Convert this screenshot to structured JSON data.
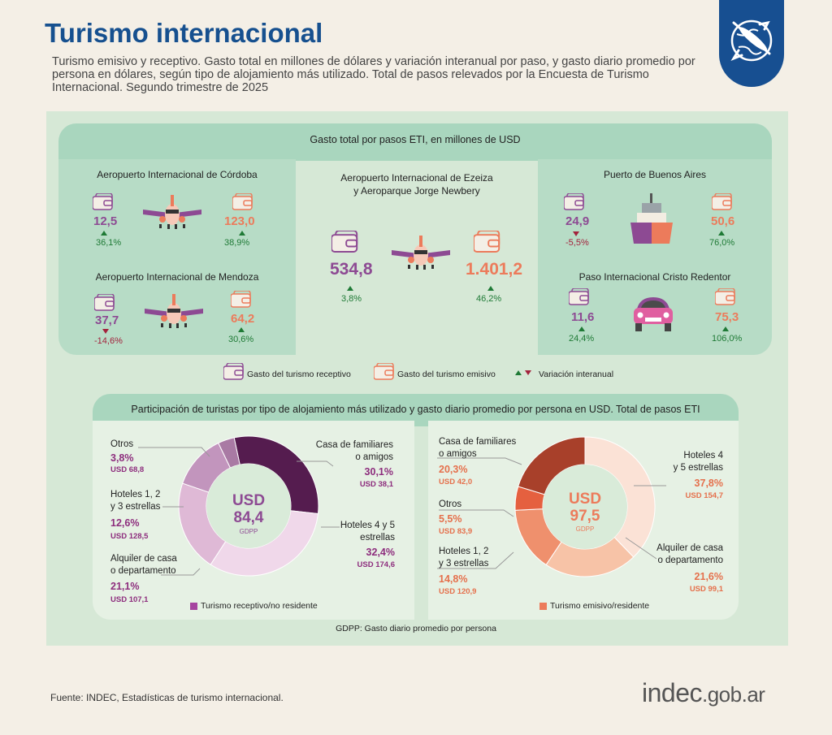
{
  "header": {
    "title": "Turismo internacional",
    "subtitle": "Turismo emisivo y receptivo. Gasto total en millones de dólares y variación interanual por paso, y gasto diario promedio por persona en dólares, según tipo de alojamiento más utilizado. Total de pasos relevados por la Encuesta de Turismo Internacional. Segundo trimestre de 2025"
  },
  "section1": {
    "title": "Gasto total por pasos ETI, en millones de USD",
    "cordoba": {
      "name": "Aeropuerto Internacional de Córdoba",
      "receptivo": "12,5",
      "var_receptivo": "36,1%",
      "emisivo": "123,0",
      "var_emisivo": "38,9%"
    },
    "mendoza": {
      "name": "Aeropuerto Internacional de Mendoza",
      "receptivo": "37,7",
      "var_receptivo": "-14,6%",
      "emisivo": "64,2",
      "var_emisivo": "30,6%"
    },
    "ezeiza": {
      "name1": "Aeropuerto Internacional de Ezeiza",
      "name2": "y Aeroparque Jorge Newbery",
      "receptivo": "534,8",
      "var_receptivo": "3,8%",
      "emisivo": "1.401,2",
      "var_emisivo": "46,2%"
    },
    "puerto": {
      "name": "Puerto de Buenos Aires",
      "receptivo": "24,9",
      "var_receptivo": "-5,5%",
      "emisivo": "50,6",
      "var_emisivo": "76,0%"
    },
    "cristo": {
      "name": "Paso Internacional Cristo Redentor",
      "receptivo": "11,6",
      "var_receptivo": "24,4%",
      "emisivo": "75,3",
      "var_emisivo": "106,0%"
    },
    "legend": {
      "receptivo": "Gasto del turismo receptivo",
      "emisivo": "Gasto del turismo emisivo",
      "variacion": "Variación interanual"
    }
  },
  "section2": {
    "title": "Participación de turistas por tipo de alojamiento más utilizado y gasto diario promedio por persona en USD. Total de pasos ETI",
    "receptivo": {
      "center_usd": "USD",
      "center_value": "84,4",
      "center_label": "GDPP",
      "legend": "Turismo receptivo/no residente",
      "otros": {
        "label": "Otros",
        "pct": "3,8%",
        "usd": "USD 68,8"
      },
      "casa": {
        "label1": "Casa de familiares",
        "label2": "o amigos",
        "pct": "30,1%",
        "usd": "USD 38,1"
      },
      "hoteles45": {
        "label1": "Hoteles 4 y 5",
        "label2": "estrellas",
        "pct": "32,4%",
        "usd": "USD 174,6"
      },
      "hoteles123": {
        "label1": "Hoteles 1, 2",
        "label2": "y 3 estrellas",
        "pct": "12,6%",
        "usd": "USD 128,5"
      },
      "alquiler": {
        "label1": "Alquiler de casa",
        "label2": "o departamento",
        "pct": "21,1%",
        "usd": "USD 107,1"
      }
    },
    "emisivo": {
      "center_usd": "USD",
      "center_value": "97,5",
      "center_label": "GDPP",
      "legend": "Turismo emisivo/residente",
      "casa": {
        "label1": "Casa de familiares",
        "label2": "o amigos",
        "pct": "20,3%",
        "usd": "USD 42,0"
      },
      "otros": {
        "label": "Otros",
        "pct": "5,5%",
        "usd": "USD 83,9"
      },
      "hoteles123": {
        "label1": "Hoteles 1, 2",
        "label2": "y 3 estrellas",
        "pct": "14,8%",
        "usd": "USD 120,9"
      },
      "hoteles45": {
        "label1": "Hoteles 4",
        "label2": "y 5 estrellas",
        "pct": "37,8%",
        "usd": "USD 154,7"
      },
      "alquiler": {
        "label1": "Alquiler de casa",
        "label2": "o departamento",
        "pct": "21,6%",
        "usd": "USD 99,1"
      }
    },
    "note": "GDPP: Gasto diario promedio por persona"
  },
  "footer": {
    "source": "Fuente: INDEC, Estadísticas de turismo internacional.",
    "brand": "indec",
    "brand_domain": ".gob.ar"
  },
  "colors": {
    "title": "#16508f",
    "receptivo": "#8d4a93",
    "emisivo": "#ec7b5b",
    "positive": "#1f7a36",
    "negative": "#a3223c"
  },
  "chart_data": [
    {
      "type": "bar",
      "title": "Gasto total por pasos ETI, en millones de USD",
      "categories": [
        "Aeropuerto Internacional de Córdoba",
        "Aeropuerto Internacional de Mendoza",
        "Aeropuerto Internacional de Ezeiza y Aeroparque Jorge Newbery",
        "Puerto de Buenos Aires",
        "Paso Internacional Cristo Redentor"
      ],
      "series": [
        {
          "name": "Gasto del turismo receptivo",
          "values": [
            12.5,
            37.7,
            534.8,
            24.9,
            11.6
          ],
          "variation_pct": [
            36.1,
            -14.6,
            3.8,
            -5.5,
            24.4
          ]
        },
        {
          "name": "Gasto del turismo emisivo",
          "values": [
            123.0,
            64.2,
            1401.2,
            50.6,
            75.3
          ],
          "variation_pct": [
            38.9,
            30.6,
            46.2,
            76.0,
            106.0
          ]
        }
      ]
    },
    {
      "type": "pie",
      "title": "Turismo receptivo/no residente",
      "categories": [
        "Casa de familiares o amigos",
        "Hoteles 4 y 5 estrellas",
        "Alquiler de casa o departamento",
        "Hoteles 1, 2 y 3 estrellas",
        "Otros"
      ],
      "values": [
        30.1,
        32.4,
        21.1,
        12.6,
        3.8
      ],
      "gdpp_usd": [
        38.1,
        174.6,
        107.1,
        128.5,
        68.8
      ],
      "colors": [
        "#551c4f",
        "#f0d8ea",
        "#dfb9d6",
        "#c295bd",
        "#a97aa4"
      ],
      "center": 84.4
    },
    {
      "type": "pie",
      "title": "Turismo emisivo/residente",
      "categories": [
        "Hoteles 4 y 5 estrellas",
        "Alquiler de casa o departamento",
        "Hoteles 1, 2 y 3 estrellas",
        "Otros",
        "Casa de familiares o amigos"
      ],
      "values": [
        37.8,
        21.6,
        14.8,
        5.5,
        20.3
      ],
      "gdpp_usd": [
        154.7,
        99.1,
        120.9,
        83.9,
        42.0
      ],
      "colors": [
        "#fbe2d6",
        "#f7c3a7",
        "#ef906d",
        "#e5603f",
        "#a8402a"
      ],
      "center": 97.5
    }
  ]
}
